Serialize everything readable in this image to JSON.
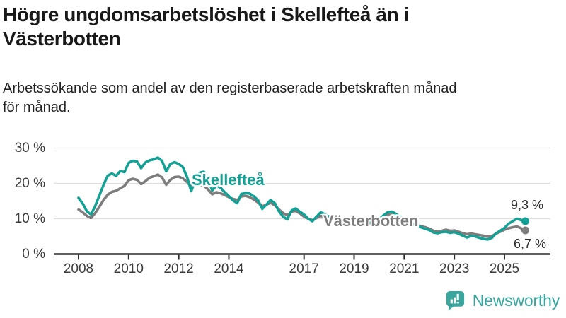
{
  "header": {
    "title_line1": "Högre ungdomsarbetslöshet i Skellefteå än i",
    "title_line2": "Västerbotten",
    "subtitle_line1": "Arbetssökande som andel av den registerbaserade arbetskraften månad",
    "subtitle_line2": "för månad."
  },
  "chart_data": {
    "type": "line",
    "title": "Högre ungdomsarbetslöshet i Skellefteå än i Västerbotten",
    "subtitle": "Arbetssökande som andel av den registerbaserade arbetskraften månad för månad.",
    "x_unit": "year (monthly data)",
    "x_start": 2008.0,
    "x_step_years": 0.16667,
    "xlim": [
      2007.3,
      2026.2
    ],
    "ylim": [
      0,
      32
    ],
    "grid": "horizontal",
    "legend": "inline-labels",
    "xticks": [
      2008,
      2010,
      2012,
      2014,
      2017,
      2019,
      2021,
      2023,
      2025
    ],
    "yticks": [
      {
        "value": 0,
        "label": "0 %"
      },
      {
        "value": 10,
        "label": "10 %"
      },
      {
        "value": 20,
        "label": "20 %"
      },
      {
        "value": 30,
        "label": "30 %"
      }
    ],
    "series": [
      {
        "name": "Skellefteå",
        "color": "#14a195",
        "end_label": "9,3 %",
        "end_value": 9.3,
        "values": [
          15.9,
          14.3,
          12.1,
          11.2,
          13.6,
          16.6,
          19.6,
          22.2,
          22.8,
          22.1,
          23.5,
          23.2,
          25.8,
          26.4,
          26.2,
          24.3,
          25.9,
          26.5,
          26.8,
          27.3,
          26.4,
          23.4,
          25.5,
          26.0,
          25.5,
          24.6,
          21.8,
          17.8,
          21.0,
          23.0,
          23.3,
          21.5,
          18.0,
          19.4,
          18.8,
          17.5,
          16.4,
          15.2,
          14.4,
          17.0,
          17.3,
          17.1,
          16.3,
          15.2,
          12.8,
          14.0,
          15.3,
          14.4,
          12.1,
          10.6,
          9.8,
          12.3,
          12.9,
          12.0,
          11.2,
          10.0,
          9.3,
          10.6,
          11.8,
          11.3,
          10.6,
          10.0,
          9.6,
          9.9,
          10.1,
          9.6,
          9.2,
          8.8,
          8.6,
          8.9,
          9.2,
          9.4,
          9.8,
          10.9,
          11.8,
          12.0,
          11.4,
          10.6,
          9.8,
          9.2,
          8.6,
          8.0,
          7.6,
          7.2,
          6.8,
          6.1,
          5.9,
          6.2,
          6.3,
          6.0,
          6.2,
          5.8,
          5.2,
          4.7,
          5.1,
          5.0,
          4.6,
          4.3,
          4.1,
          4.6,
          5.9,
          6.6,
          7.4,
          8.6,
          9.3,
          10.0,
          9.6,
          9.3
        ]
      },
      {
        "name": "Västerbotten",
        "color": "#7d7d7d",
        "end_label": "6,7 %",
        "end_value": 6.7,
        "values": [
          12.6,
          11.8,
          10.8,
          10.2,
          11.6,
          13.4,
          15.3,
          16.8,
          17.6,
          17.9,
          18.6,
          19.3,
          20.9,
          21.3,
          21.0,
          19.8,
          20.6,
          21.6,
          22.0,
          22.5,
          21.7,
          19.6,
          21.0,
          21.8,
          21.9,
          21.4,
          20.4,
          19.0,
          19.7,
          19.5,
          19.4,
          18.3,
          16.9,
          17.5,
          17.2,
          16.7,
          16.1,
          15.6,
          15.3,
          16.3,
          16.5,
          16.1,
          15.4,
          14.6,
          13.5,
          14.0,
          14.5,
          13.8,
          12.6,
          11.6,
          11.0,
          12.0,
          12.2,
          11.5,
          10.6,
          10.0,
          9.6,
          10.2,
          10.8,
          10.4,
          9.9,
          9.5,
          9.2,
          9.4,
          9.6,
          9.2,
          8.8,
          8.5,
          8.3,
          8.5,
          8.8,
          9.0,
          9.4,
          10.3,
          11.2,
          11.4,
          10.9,
          10.2,
          9.6,
          9.1,
          8.6,
          8.2,
          7.9,
          7.6,
          7.2,
          6.6,
          6.4,
          6.6,
          6.9,
          6.6,
          6.7,
          6.3,
          5.9,
          5.6,
          5.8,
          5.6,
          5.4,
          5.2,
          4.9,
          5.1,
          5.8,
          6.3,
          6.9,
          7.3,
          7.6,
          7.8,
          7.3,
          6.7
        ]
      }
    ],
    "colors": {
      "grid": "#dedede",
      "axis": "#2d2d2d",
      "tick_text": "#3a3a3a"
    }
  },
  "footer": {
    "brand": "Newsworthy",
    "brand_color": "#35a79e"
  }
}
